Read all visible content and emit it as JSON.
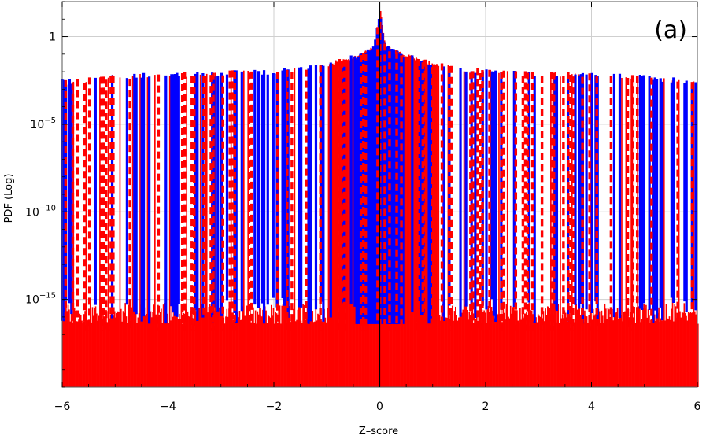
{
  "chart_data": {
    "type": "area",
    "title": "",
    "panel_label": "(a)",
    "xlabel": "Z–score",
    "ylabel": "PDF (Log)",
    "xlim": [
      -6,
      6
    ],
    "ylim_log10": [
      -20,
      2
    ],
    "y_scale": "log",
    "grid": true,
    "x_ticks": [
      {
        "value": -6,
        "label": "−6"
      },
      {
        "value": -4,
        "label": "−4"
      },
      {
        "value": -2,
        "label": "−2"
      },
      {
        "value": 0,
        "label": "0"
      },
      {
        "value": 2,
        "label": "2"
      },
      {
        "value": 4,
        "label": "4"
      },
      {
        "value": 6,
        "label": "6"
      }
    ],
    "y_ticks": [
      {
        "exp": 0,
        "base": "1",
        "sup": ""
      },
      {
        "exp": -5,
        "base": "10",
        "sup": "−5"
      },
      {
        "exp": -10,
        "base": "10",
        "sup": "−10"
      },
      {
        "exp": -15,
        "base": "10",
        "sup": "−15"
      }
    ],
    "series": [
      {
        "style": "red-filled",
        "color": "#ff0000"
      },
      {
        "style": "blue-solid",
        "color": "#0000ff"
      },
      {
        "style": "red-dashed",
        "color": "#ff0000"
      }
    ],
    "profile": [
      {
        "z": -6.0,
        "log_pdf": -2.6
      },
      {
        "z": -5.0,
        "log_pdf": -2.3
      },
      {
        "z": -4.0,
        "log_pdf": -2.2
      },
      {
        "z": -3.0,
        "log_pdf": -2.1
      },
      {
        "z": -2.0,
        "log_pdf": -2.0
      },
      {
        "z": -1.0,
        "log_pdf": -1.6
      },
      {
        "z": -0.4,
        "log_pdf": -1.1
      },
      {
        "z": -0.1,
        "log_pdf": -0.6
      },
      {
        "z": 0.0,
        "log_pdf": 1.4
      },
      {
        "z": 0.1,
        "log_pdf": -0.6
      },
      {
        "z": 0.4,
        "log_pdf": -1.0
      },
      {
        "z": 1.0,
        "log_pdf": -1.6
      },
      {
        "z": 2.0,
        "log_pdf": -2.0
      },
      {
        "z": 3.0,
        "log_pdf": -2.1
      },
      {
        "z": 4.0,
        "log_pdf": -2.2
      },
      {
        "z": 5.0,
        "log_pdf": -2.3
      },
      {
        "z": 6.0,
        "log_pdf": -2.6
      }
    ],
    "floor_log_pdf": -16.4,
    "red_fill_solid_range": [
      -1.0,
      1.1
    ],
    "blue_solid_range": [
      -0.45,
      0.45
    ]
  }
}
